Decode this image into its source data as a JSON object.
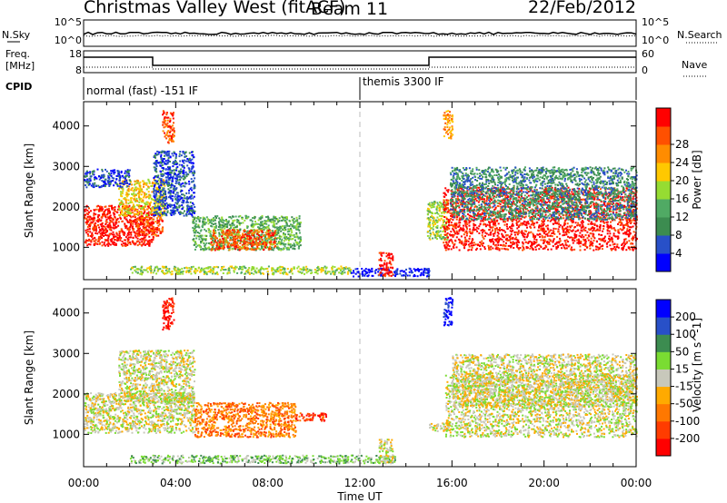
{
  "header": {
    "station": "Christmas Valley West (fitACF)",
    "beam": "Beam 11",
    "date": "22/Feb/2012"
  },
  "strip_labels": {
    "nsky": "N.Sky",
    "nsearch": "N.Search",
    "freq": "Freq.",
    "mhz": "[MHz]",
    "nave": "Nave",
    "cpid": "CPID"
  },
  "noise_ticks": {
    "left": [
      "10^5",
      "10^0"
    ],
    "right": [
      "10^5",
      "10^0"
    ]
  },
  "freq_ticks": {
    "left": [
      "18",
      "8"
    ],
    "right": [
      "60",
      "0"
    ]
  },
  "cpid_segments": [
    {
      "label": "normal (fast) -151 IF",
      "start_hour": 0
    },
    {
      "label": "themis 3300 IF",
      "start_hour": 12
    }
  ],
  "colors": {
    "power_scale": [
      "#0000ff",
      "#2850c8",
      "#3c8c50",
      "#50aa64",
      "#96dc32",
      "#ffc800",
      "#ff8c00",
      "#ff5000",
      "#ff0000"
    ],
    "velocity_scale": [
      "#0000ff",
      "#2850c8",
      "#3c8c50",
      "#7adc32",
      "#c8c8bb",
      "#ffaa00",
      "#ff7800",
      "#ff3c00",
      "#ff0000"
    ],
    "ground_scatter": "#c8c8bb"
  },
  "chart_data": [
    {
      "type": "heatmap",
      "panel": "power",
      "ylabel": "Slant Range [km]",
      "ylim": [
        200,
        4600
      ],
      "yticks": [
        1000,
        2000,
        3000,
        4000
      ],
      "xlim_hours": [
        0,
        24
      ],
      "colorbar_label": "Power [dB]",
      "colorbar_ticks": [
        "4",
        "8",
        "12",
        "16",
        "20",
        "24",
        "28"
      ],
      "echo_regions": [
        {
          "t0": 0.0,
          "t1": 3.0,
          "r0": 1050,
          "r1": 2050,
          "level": 8
        },
        {
          "t0": 1.5,
          "t1": 3.5,
          "r0": 1800,
          "r1": 2700,
          "level": 5
        },
        {
          "t0": 2.3,
          "t1": 3.4,
          "r0": 1300,
          "r1": 1800,
          "level": 7
        },
        {
          "t0": 0.0,
          "t1": 2.0,
          "r0": 2500,
          "r1": 2950,
          "level": 1
        },
        {
          "t0": 3.0,
          "t1": 4.8,
          "r0": 1800,
          "r1": 3400,
          "level": 1
        },
        {
          "t0": 3.4,
          "t1": 3.9,
          "r0": 3600,
          "r1": 4400,
          "level": 7
        },
        {
          "t0": 4.7,
          "t1": 9.4,
          "r0": 950,
          "r1": 1800,
          "level": 3
        },
        {
          "t0": 5.5,
          "t1": 8.3,
          "r0": 950,
          "r1": 1450,
          "level": 7
        },
        {
          "t0": 2.0,
          "t1": 11.6,
          "r0": 350,
          "r1": 550,
          "level": 4
        },
        {
          "t0": 11.6,
          "t1": 15.0,
          "r0": 300,
          "r1": 500,
          "level": 0
        },
        {
          "t0": 12.8,
          "t1": 13.4,
          "r0": 300,
          "r1": 900,
          "level": 8
        },
        {
          "t0": 14.9,
          "t1": 15.8,
          "r0": 1200,
          "r1": 2200,
          "level": 4
        },
        {
          "t0": 15.6,
          "t1": 16.0,
          "r0": 3700,
          "r1": 4400,
          "level": 6
        },
        {
          "t0": 15.6,
          "t1": 24.0,
          "r0": 950,
          "r1": 2500,
          "level": 8
        },
        {
          "t0": 15.9,
          "t1": 24.0,
          "r0": 1700,
          "r1": 3000,
          "level": 2
        }
      ]
    },
    {
      "type": "heatmap",
      "panel": "velocity",
      "ylabel": "Slant Range [km]",
      "ylim": [
        200,
        4600
      ],
      "yticks": [
        1000,
        2000,
        3000,
        4000
      ],
      "xlim_hours": [
        0,
        24
      ],
      "xticks": [
        "00:00",
        "04:00",
        "08:00",
        "12:00",
        "16:00",
        "20:00",
        "00:00"
      ],
      "xlabel": "Time UT",
      "colorbar_label": "Velocity [m s^-1]",
      "colorbar_ticks": [
        "200",
        "100",
        "50",
        "15",
        "-15",
        "-50",
        "-100",
        "-200"
      ],
      "echo_regions": [
        {
          "t0": 0.0,
          "t1": 4.8,
          "r0": 1050,
          "r1": 2050,
          "level": 4
        },
        {
          "t0": 1.5,
          "t1": 4.8,
          "r0": 1800,
          "r1": 3100,
          "level": 4
        },
        {
          "t0": 3.4,
          "t1": 3.9,
          "r0": 3600,
          "r1": 4400,
          "level": 8
        },
        {
          "t0": 4.8,
          "t1": 9.2,
          "r0": 950,
          "r1": 1800,
          "level": 6
        },
        {
          "t0": 9.2,
          "t1": 10.6,
          "r0": 1350,
          "r1": 1550,
          "level": 7
        },
        {
          "t0": 2.0,
          "t1": 13.5,
          "r0": 300,
          "r1": 500,
          "level": 3
        },
        {
          "t0": 12.8,
          "t1": 13.4,
          "r0": 300,
          "r1": 900,
          "level": 4
        },
        {
          "t0": 15.0,
          "t1": 16.0,
          "r0": 1100,
          "r1": 1300,
          "level": 4
        },
        {
          "t0": 15.6,
          "t1": 16.0,
          "r0": 3700,
          "r1": 4400,
          "level": 0
        },
        {
          "t0": 15.7,
          "t1": 24.0,
          "r0": 950,
          "r1": 2500,
          "level": 4
        },
        {
          "t0": 16.0,
          "t1": 24.0,
          "r0": 1700,
          "r1": 3000,
          "level": 4
        }
      ]
    }
  ]
}
